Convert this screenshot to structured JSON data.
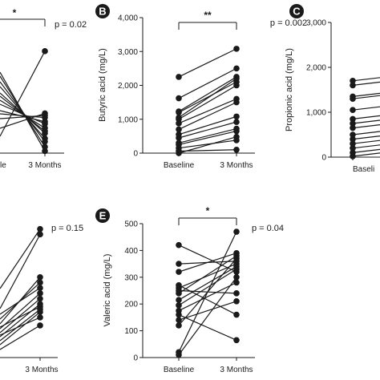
{
  "chart_data": [
    {
      "id": "A-fragment",
      "type": "line",
      "panel_label": "",
      "categories": [
        "",
        "3 Months"
      ],
      "xtick_labels": [
        "le",
        "3 Months"
      ],
      "ylabel": "",
      "significance": "*",
      "p_value": "p = 0.02",
      "series_baseline": [
        null,
        null,
        null,
        null,
        null,
        null,
        null,
        null,
        null,
        null,
        null,
        null,
        null
      ],
      "series_3m": [
        1950,
        760,
        720,
        680,
        600,
        560,
        480,
        420,
        380,
        280,
        220,
        120,
        40
      ]
    },
    {
      "id": "B",
      "type": "line",
      "panel_label": "B",
      "categories": [
        "Baseline",
        "3 Months"
      ],
      "ylabel": "Butyric acid (mg/L)",
      "ylim": [
        0,
        4000
      ],
      "yticks": [
        "0",
        "1,000",
        "2,000",
        "3,000",
        "4,000"
      ],
      "significance": "**",
      "p_value": "p = 0.002",
      "pairs": [
        [
          2250,
          3080
        ],
        [
          1620,
          2500
        ],
        [
          1230,
          2250
        ],
        [
          1200,
          2100
        ],
        [
          1000,
          2000
        ],
        [
          880,
          1600
        ],
        [
          700,
          1500
        ],
        [
          550,
          1080
        ],
        [
          450,
          920
        ],
        [
          300,
          720
        ],
        [
          250,
          650
        ],
        [
          150,
          380
        ],
        [
          60,
          100
        ],
        [
          0,
          480
        ],
        [
          1050,
          2200
        ]
      ]
    },
    {
      "id": "C",
      "type": "line",
      "panel_label": "C",
      "categories": [
        "Baseli"
      ],
      "ylabel": "Propionic acid (mg/L)",
      "ylim": [
        0,
        3000
      ],
      "yticks": [
        "0",
        "1,000",
        "2,000",
        "3,000"
      ],
      "baseline_values": [
        1700,
        1600,
        1350,
        1300,
        1050,
        850,
        750,
        650,
        500,
        400,
        300,
        200,
        100,
        20
      ]
    },
    {
      "id": "D-fragment",
      "type": "line",
      "panel_label": "",
      "categories": [
        "",
        "3 Months"
      ],
      "xtick_labels": [
        "",
        "3 Months"
      ],
      "ylabel": "",
      "p_value": "p = 0.15",
      "series_3m": [
        480,
        460,
        300,
        280,
        260,
        240,
        220,
        200,
        190,
        180,
        170,
        150,
        120
      ]
    },
    {
      "id": "E",
      "type": "line",
      "panel_label": "E",
      "categories": [
        "Baseline",
        "3 Months"
      ],
      "ylabel": "Valeric acid (mg/L)",
      "ylim": [
        0,
        500
      ],
      "yticks": [
        "0",
        "100",
        "200",
        "300",
        "400",
        "500"
      ],
      "significance": "*",
      "p_value": "p = 0.04",
      "pairs": [
        [
          420,
          320
        ],
        [
          350,
          360
        ],
        [
          320,
          390
        ],
        [
          270,
          160
        ],
        [
          250,
          240
        ],
        [
          240,
          380
        ],
        [
          215,
          340
        ],
        [
          195,
          330
        ],
        [
          175,
          280
        ],
        [
          160,
          65
        ],
        [
          140,
          210
        ],
        [
          120,
          370
        ],
        [
          20,
          470
        ],
        [
          10,
          300
        ],
        [
          260,
          350
        ]
      ]
    }
  ],
  "colors": {
    "line": "#1a1a1a",
    "badge": "#1a1a1a"
  }
}
